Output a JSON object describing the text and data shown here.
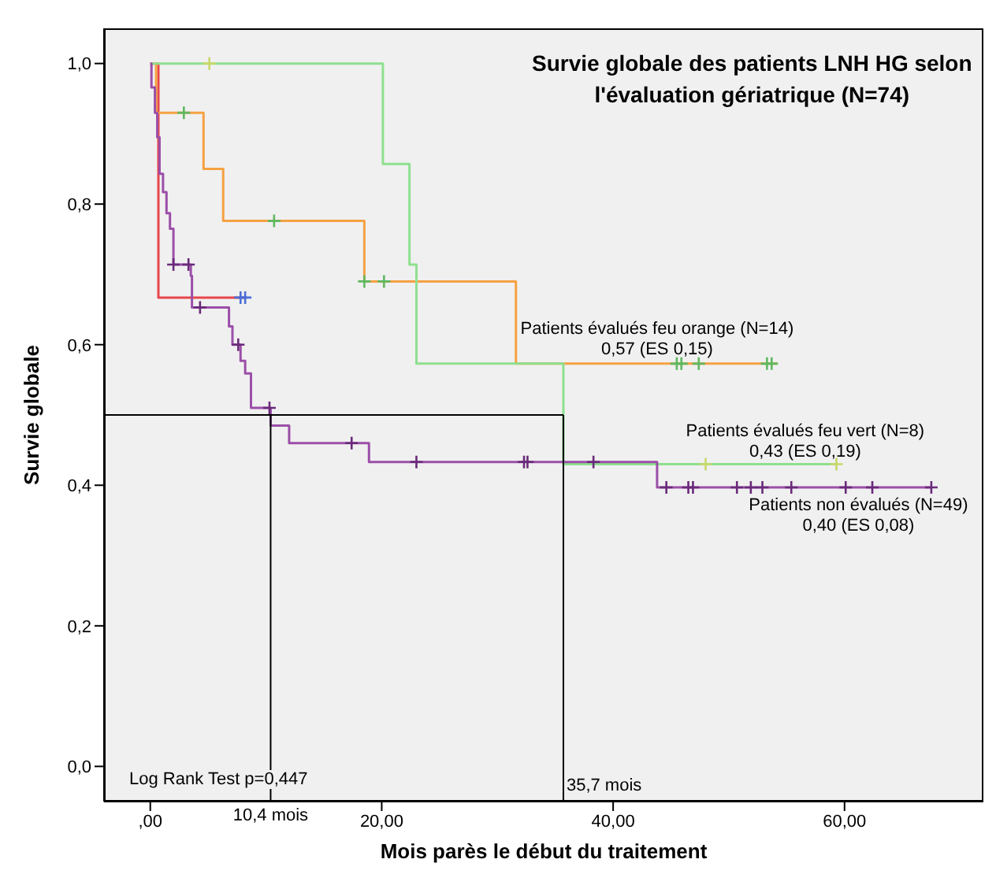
{
  "chart_data": {
    "type": "step",
    "title": "Survie globale des patients LNH HG selon l'évaluation gériatrique (N=74)",
    "xlabel": "Mois parès le début du traitement",
    "ylabel": "Survie globale",
    "xlim": [
      -4,
      72
    ],
    "ylim": [
      -0.05,
      1.05
    ],
    "xticks": [
      {
        "value": 0,
        "label": ",00"
      },
      {
        "value": 20,
        "label": "20,00"
      },
      {
        "value": 40,
        "label": "40,00"
      },
      {
        "value": 60,
        "label": "60,00"
      }
    ],
    "yticks": [
      {
        "value": 0,
        "label": "0,0"
      },
      {
        "value": 0.2,
        "label": "0,2"
      },
      {
        "value": 0.4,
        "label": "0,4"
      },
      {
        "value": 0.6,
        "label": "0,6"
      },
      {
        "value": 0.8,
        "label": "0,8"
      },
      {
        "value": 1,
        "label": "1,0"
      }
    ],
    "grid": false,
    "legend": false,
    "marker": "none",
    "line_style": "solid",
    "series": [
      {
        "color": "#e8454a",
        "x": [
          0,
          0.7,
          8.2
        ],
        "values": [
          1,
          0.667,
          0.667
        ]
      },
      {
        "name": "Patients évalués feu orange (N=14)",
        "color": "#f5a142",
        "x": [
          0,
          0.5,
          4.6,
          6.3,
          18.5,
          31.6,
          54.2
        ],
        "values": [
          1,
          0.93,
          0.85,
          0.776,
          0.69,
          0.573,
          0.573
        ]
      },
      {
        "name": "Patients évalués feu vert (N=8)",
        "color": "#8ee08e",
        "x": [
          0,
          20.1,
          22.4,
          23.0,
          35.7,
          59.3
        ],
        "values": [
          1,
          0.857,
          0.714,
          0.573,
          0.43,
          0.43
        ]
      },
      {
        "name": "Patients non évalués (N=49)",
        "color": "#9b4fa8",
        "x": [
          0,
          0.1,
          0.4,
          0.6,
          0.8,
          1.1,
          1.4,
          1.7,
          2.0,
          3.5,
          3.6,
          6.8,
          7.1,
          7.8,
          8.2,
          8.7,
          10.4,
          12.0,
          18.9,
          43.8,
          67.5
        ],
        "values": [
          1,
          0.966,
          0.93,
          0.895,
          0.843,
          0.817,
          0.787,
          0.765,
          0.714,
          0.698,
          0.653,
          0.626,
          0.6,
          0.577,
          0.559,
          0.51,
          0.485,
          0.46,
          0.433,
          0.397,
          0.397
        ]
      },
      {
        "type": "scatter",
        "marker": "cross",
        "color": "#4a6fd6",
        "x": [
          7.8,
          8.2
        ],
        "values": [
          0.667,
          0.667
        ]
      },
      {
        "type": "scatter",
        "marker": "cross",
        "color": "#5fb85f",
        "x": [
          2.9,
          10.7,
          18.5,
          20.2,
          45.5,
          45.9,
          47.4,
          53.3,
          53.7
        ],
        "values": [
          0.93,
          0.776,
          0.69,
          0.69,
          0.573,
          0.573,
          0.573,
          0.573,
          0.573
        ]
      },
      {
        "type": "scatter",
        "marker": "cross",
        "color": "#c8d86a",
        "x": [
          5.1,
          48,
          59.3
        ],
        "values": [
          1,
          0.43,
          0.43
        ]
      },
      {
        "type": "scatter",
        "marker": "cross",
        "color": "#6a2a7a",
        "x": [
          2.0,
          3.3,
          4.3,
          7.6,
          10.3,
          17.4,
          23.0,
          32.3,
          32.6,
          38.3,
          44.6,
          46.5,
          46.9,
          50.7,
          51.9,
          52.9,
          55.4,
          60.1,
          62.4,
          67.5
        ],
        "values": [
          0.714,
          0.714,
          0.653,
          0.6,
          0.51,
          0.46,
          0.433,
          0.433,
          0.433,
          0.433,
          0.397,
          0.397,
          0.397,
          0.397,
          0.397,
          0.397,
          0.397,
          0.397,
          0.397,
          0.397
        ]
      }
    ],
    "ref_lines": [
      {
        "axis": "y",
        "value": 0.5,
        "color": "#000000"
      },
      {
        "axis": "x",
        "value": 10.4,
        "label": "10,4 mois",
        "color": "#000000"
      },
      {
        "axis": "x",
        "value": 35.7,
        "label": "35,7 mois",
        "color": "#000000"
      }
    ],
    "annotations": [
      "0,57 (ES 0,15)",
      "0,43 (ES 0,19)",
      "0,40 (ES 0,08)",
      "Log Rank Test p=0,447"
    ]
  }
}
